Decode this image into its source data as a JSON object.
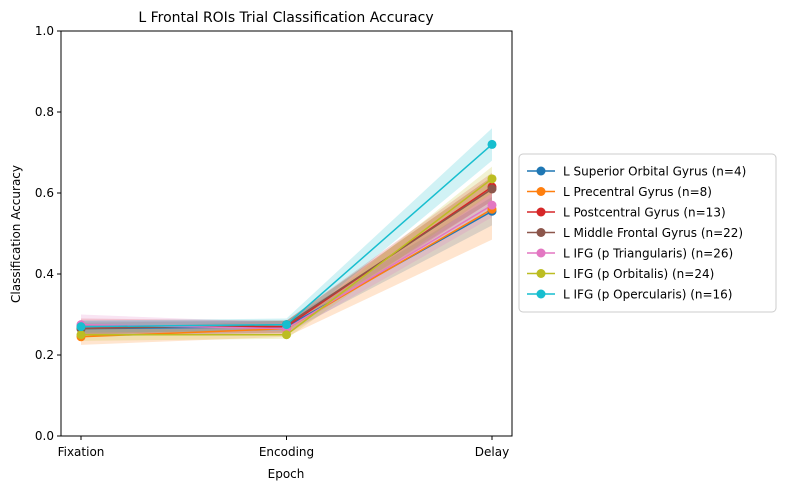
{
  "chart_data": {
    "type": "line",
    "title": "L Frontal ROIs Trial Classification Accuracy",
    "xlabel": "Epoch",
    "ylabel": "Classification Accuracy",
    "categories": [
      "Fixation",
      "Encoding",
      "Delay"
    ],
    "ylim": [
      0.0,
      1.0
    ],
    "yticks": [
      "0.0",
      "0.2",
      "0.4",
      "0.6",
      "0.8",
      "1.0"
    ],
    "grid": false,
    "legend_position": "right, outside plot",
    "series": [
      {
        "name": "L Superior Orbital Gyrus (n=4)",
        "color": "#1f77b4",
        "values": [
          0.265,
          0.27,
          0.555
        ],
        "band": [
          [
            0.245,
            0.285
          ],
          [
            0.255,
            0.285
          ],
          [
            0.52,
            0.59
          ]
        ]
      },
      {
        "name": "L Precentral Gyrus (n=8)",
        "color": "#ff7f0e",
        "values": [
          0.245,
          0.265,
          0.56
        ],
        "band": [
          [
            0.225,
            0.265
          ],
          [
            0.245,
            0.285
          ],
          [
            0.485,
            0.64
          ]
        ]
      },
      {
        "name": "L Postcentral Gyrus (n=13)",
        "color": "#d62728",
        "values": [
          0.27,
          0.27,
          0.615
        ],
        "band": [
          [
            0.25,
            0.29
          ],
          [
            0.255,
            0.285
          ],
          [
            0.58,
            0.65
          ]
        ]
      },
      {
        "name": "L Middle Frontal Gyrus (n=22)",
        "color": "#8c564b",
        "values": [
          0.265,
          0.275,
          0.61
        ],
        "band": [
          [
            0.25,
            0.28
          ],
          [
            0.265,
            0.285
          ],
          [
            0.58,
            0.64
          ]
        ]
      },
      {
        "name": "L IFG (p Triangularis) (n=26)",
        "color": "#e377c2",
        "values": [
          0.275,
          0.265,
          0.57
        ],
        "band": [
          [
            0.255,
            0.3
          ],
          [
            0.25,
            0.28
          ],
          [
            0.54,
            0.6
          ]
        ]
      },
      {
        "name": "L IFG (p Orbitalis) (n=24)",
        "color": "#bcbd22",
        "values": [
          0.25,
          0.25,
          0.635
        ],
        "band": [
          [
            0.235,
            0.265
          ],
          [
            0.24,
            0.26
          ],
          [
            0.6,
            0.665
          ]
        ]
      },
      {
        "name": "L IFG (p Opercularis) (n=16)",
        "color": "#17becf",
        "values": [
          0.27,
          0.275,
          0.72
        ],
        "band": [
          [
            0.255,
            0.285
          ],
          [
            0.26,
            0.29
          ],
          [
            0.68,
            0.76
          ]
        ]
      }
    ]
  }
}
